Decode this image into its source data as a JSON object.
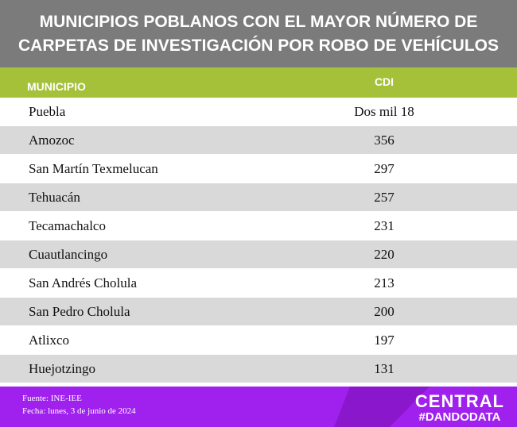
{
  "header": {
    "title": [
      "MUNICIPIOS POBLANOS CON EL MAYOR NÚMERO DE",
      "CARPETAS DE INVESTIGACIÓN POR ROBO DE VEHÍCULOS"
    ]
  },
  "table": {
    "columns": [
      "MUNICIPIO",
      "CDI"
    ],
    "rows": [
      [
        "Puebla",
        "Dos mil 18"
      ],
      [
        "Amozoc",
        "356"
      ],
      [
        "San Martín Texmelucan",
        "297"
      ],
      [
        "Tehuacán",
        "257"
      ],
      [
        "Tecamachalco",
        "231"
      ],
      [
        "Cuautlancingo",
        "220"
      ],
      [
        "San Andrés Cholula",
        "213"
      ],
      [
        "San Pedro Cholula",
        "200"
      ],
      [
        "Atlixco",
        "197"
      ],
      [
        "Huejotzingo",
        "131"
      ]
    ]
  },
  "footer": {
    "source": "Fuente: INE-IEE",
    "date": "Fecha: lunes, 3 de junio de 2024",
    "logo": "CENTRAL",
    "tagline": "#DANDODATA"
  }
}
